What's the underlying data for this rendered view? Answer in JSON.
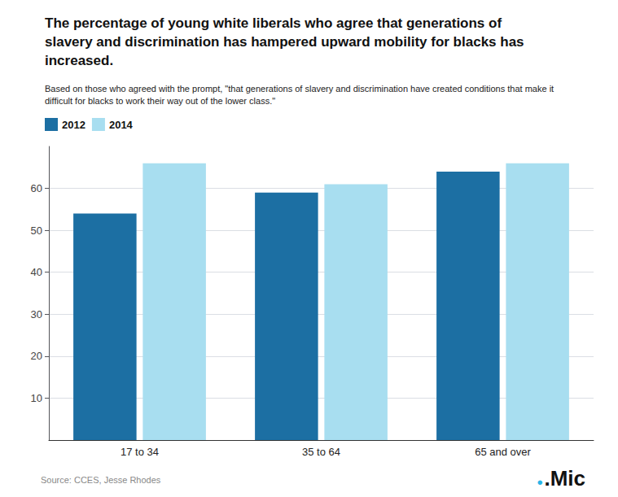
{
  "chart_data": {
    "type": "bar",
    "title": "The percentage of young white liberals who agree that generations of\nslavery and discrimination has hampered upward mobility for blacks has\nincreased.",
    "subtitle": "Based on those who agreed with the prompt, \"that generations of slavery and discrimination have created conditions that make it\ndifficult for blacks to work their way out of the lower class.\"",
    "categories": [
      "17 to 34",
      "35 to 64",
      "65 and over"
    ],
    "series": [
      {
        "name": "2012",
        "color": "#1c6fa3",
        "values": [
          54,
          59,
          64
        ]
      },
      {
        "name": "2014",
        "color": "#a8def0",
        "values": [
          66,
          61,
          66
        ]
      }
    ],
    "ylim": [
      0,
      70
    ],
    "yticks": [
      10,
      20,
      30,
      40,
      50,
      60
    ],
    "grid": true,
    "legend": "top left",
    "annotations": [
      {
        "text": "Source: CCES, Jesse Rhodes",
        "color": "#888888"
      },
      {
        "text": "●",
        "color": "#29b5e8"
      },
      {
        "text": ".Mic",
        "color": "#111111"
      }
    ]
  }
}
